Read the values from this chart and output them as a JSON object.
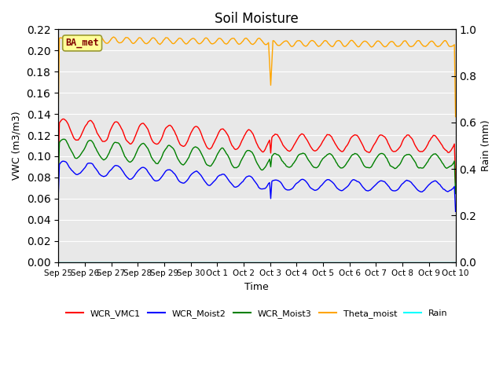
{
  "title": "Soil Moisture",
  "xlabel": "Time",
  "ylabel_left": "VWC (m3/m3)",
  "ylabel_right": "Rain (mm)",
  "ylim_left": [
    0.0,
    0.22
  ],
  "ylim_right": [
    0.0,
    1.0
  ],
  "yticks_left": [
    0.0,
    0.02,
    0.04,
    0.06,
    0.08,
    0.1,
    0.12,
    0.14,
    0.16,
    0.18,
    0.2,
    0.22
  ],
  "yticks_right": [
    0.0,
    0.2,
    0.4,
    0.6,
    0.8,
    1.0
  ],
  "bg_color": "#e8e8e8",
  "annotation_text": "BA_met",
  "annotation_box_color": "#ffff99",
  "annotation_text_color": "#800000",
  "colors": {
    "WCR_VMC1": "red",
    "WCR_Moist2": "blue",
    "WCR_Moist3": "green",
    "Theta_moist": "orange",
    "Rain": "cyan"
  },
  "xtick_labels": [
    "Sep 25",
    "Sep 26",
    "Sep 27",
    "Sep 28",
    "Sep 29",
    "Sep 30",
    "Oct 1",
    "Oct 2",
    "Oct 3",
    "Oct 4",
    "Oct 5",
    "Oct 6",
    "Oct 7",
    "Oct 8",
    "Oct 9",
    "Oct 10"
  ],
  "pts_per_day": 24,
  "n_days": 15
}
